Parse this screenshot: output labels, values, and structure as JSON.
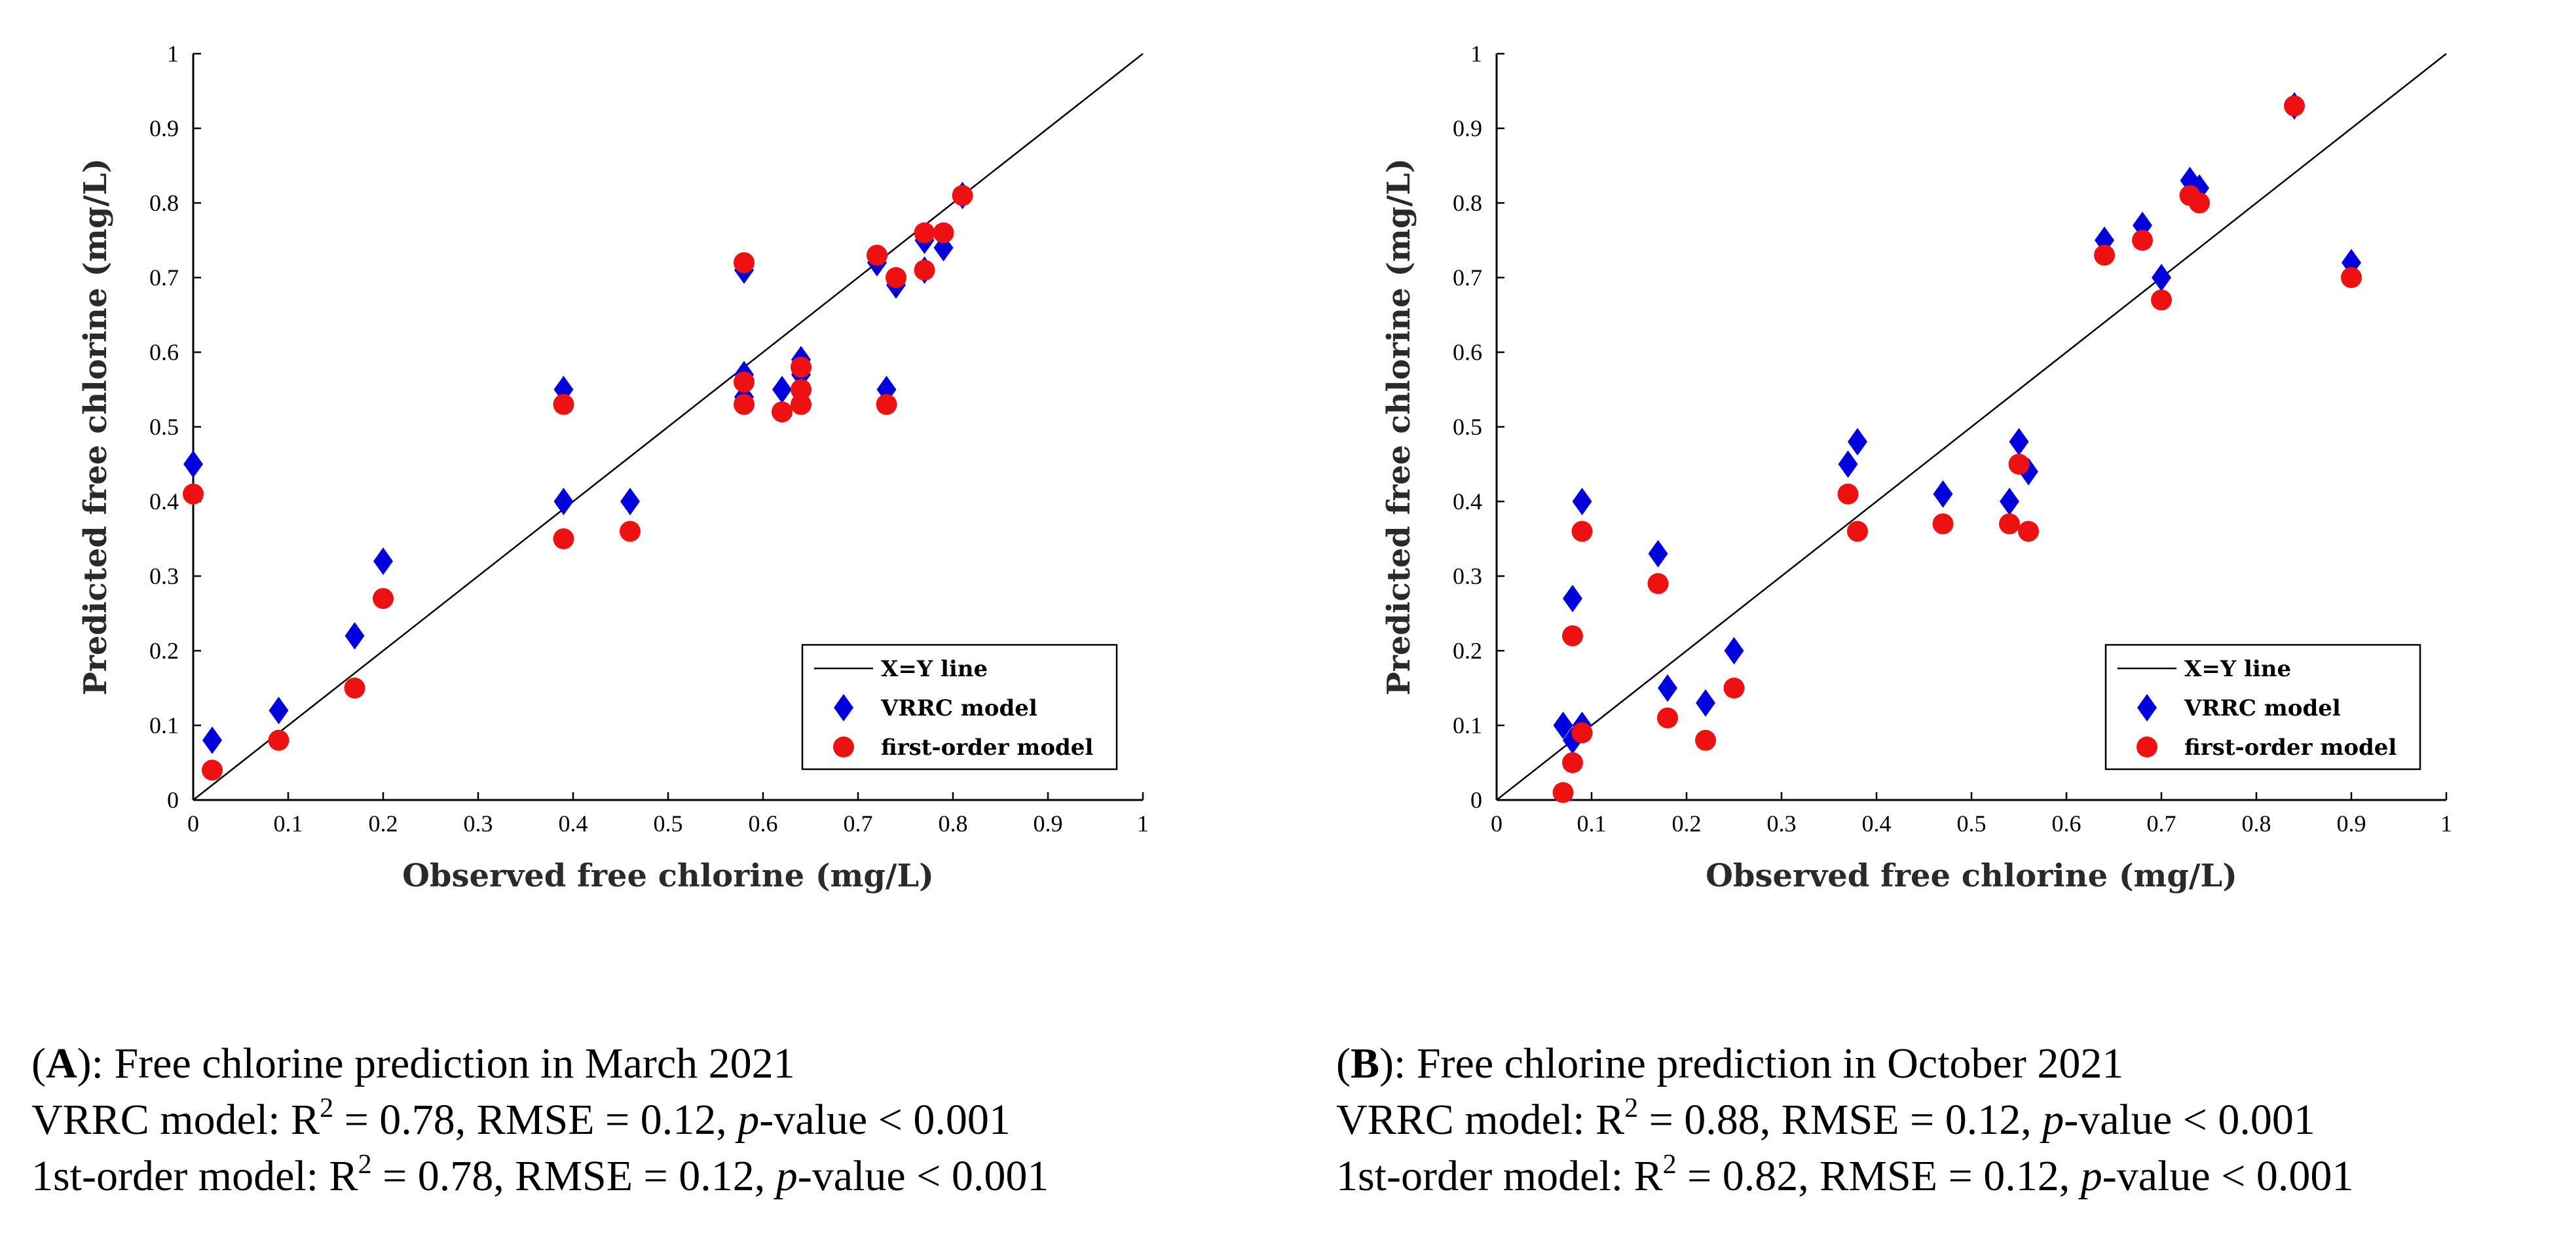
{
  "chart_data": [
    {
      "type": "scatter",
      "id": "A",
      "xlabel": "Observed free chlorine (mg/L)",
      "ylabel": "Predicted free chlorine (mg/L)",
      "xlim": [
        0,
        1
      ],
      "ylim": [
        0,
        1
      ],
      "ticks": [
        "0",
        "0.1",
        "0.2",
        "0.3",
        "0.4",
        "0.5",
        "0.6",
        "0.7",
        "0.8",
        "0.9",
        "1"
      ],
      "tick_values": [
        0,
        0.1,
        0.2,
        0.3,
        0.4,
        0.5,
        0.6,
        0.7,
        0.8,
        0.9,
        1
      ],
      "legend": {
        "placement": "bottom-right",
        "entries": [
          "X=Y line",
          "VRRC model",
          "first-order model"
        ]
      },
      "series": [
        {
          "name": "VRRC model",
          "marker": "diamond",
          "color": "#0000dd",
          "x": [
            0.0,
            0.02,
            0.09,
            0.17,
            0.2,
            0.39,
            0.39,
            0.46,
            0.58,
            0.58,
            0.58,
            0.62,
            0.64,
            0.64,
            0.64,
            0.72,
            0.73,
            0.74,
            0.77,
            0.77,
            0.79,
            0.81
          ],
          "y": [
            0.45,
            0.08,
            0.12,
            0.22,
            0.32,
            0.55,
            0.4,
            0.4,
            0.71,
            0.57,
            0.54,
            0.55,
            0.59,
            0.57,
            0.55,
            0.72,
            0.55,
            0.69,
            0.75,
            0.71,
            0.74,
            0.81
          ]
        },
        {
          "name": "first-order model",
          "marker": "circle",
          "color": "#ee1111",
          "x": [
            0.0,
            0.02,
            0.09,
            0.17,
            0.2,
            0.39,
            0.39,
            0.46,
            0.58,
            0.58,
            0.58,
            0.62,
            0.64,
            0.64,
            0.64,
            0.72,
            0.73,
            0.74,
            0.77,
            0.77,
            0.79,
            0.81
          ],
          "y": [
            0.41,
            0.04,
            0.08,
            0.15,
            0.27,
            0.53,
            0.35,
            0.36,
            0.72,
            0.56,
            0.53,
            0.52,
            0.58,
            0.55,
            0.53,
            0.73,
            0.53,
            0.7,
            0.76,
            0.71,
            0.76,
            0.81
          ]
        }
      ]
    },
    {
      "type": "scatter",
      "id": "B",
      "xlabel": "Observed free chlorine (mg/L)",
      "ylabel": "Predicted free chlorine (mg/L)",
      "xlim": [
        0,
        1
      ],
      "ylim": [
        0,
        1
      ],
      "ticks": [
        "0",
        "0.1",
        "0.2",
        "0.3",
        "0.4",
        "0.5",
        "0.6",
        "0.7",
        "0.8",
        "0.9",
        "1"
      ],
      "tick_values": [
        0,
        0.1,
        0.2,
        0.3,
        0.4,
        0.5,
        0.6,
        0.7,
        0.8,
        0.9,
        1
      ],
      "legend": {
        "placement": "bottom-right",
        "entries": [
          "X=Y line",
          "VRRC model",
          "first-order model"
        ]
      },
      "series": [
        {
          "name": "VRRC model",
          "marker": "diamond",
          "color": "#0000dd",
          "x": [
            0.07,
            0.08,
            0.08,
            0.09,
            0.09,
            0.17,
            0.18,
            0.22,
            0.25,
            0.37,
            0.38,
            0.47,
            0.54,
            0.55,
            0.56,
            0.64,
            0.68,
            0.7,
            0.73,
            0.74,
            0.84,
            0.9
          ],
          "y": [
            0.1,
            0.27,
            0.08,
            0.4,
            0.1,
            0.33,
            0.15,
            0.13,
            0.2,
            0.45,
            0.48,
            0.41,
            0.4,
            0.48,
            0.44,
            0.75,
            0.77,
            0.7,
            0.83,
            0.82,
            0.93,
            0.72
          ]
        },
        {
          "name": "first-order model",
          "marker": "circle",
          "color": "#ee1111",
          "x": [
            0.07,
            0.08,
            0.08,
            0.09,
            0.09,
            0.17,
            0.18,
            0.22,
            0.25,
            0.37,
            0.38,
            0.47,
            0.54,
            0.55,
            0.56,
            0.64,
            0.68,
            0.7,
            0.73,
            0.74,
            0.84,
            0.9
          ],
          "y": [
            0.01,
            0.22,
            0.05,
            0.36,
            0.09,
            0.29,
            0.11,
            0.08,
            0.15,
            0.41,
            0.36,
            0.37,
            0.37,
            0.45,
            0.36,
            0.73,
            0.75,
            0.67,
            0.81,
            0.8,
            0.93,
            0.7
          ]
        }
      ]
    }
  ],
  "captions": {
    "A": {
      "label": "A",
      "title": ": Free chlorine prediction in March 2021",
      "vrrc_prefix": "VRRC model: R",
      "vrrc_r2": " = 0.78, RMSE = 0.12, ",
      "first_prefix": "1st-order model: R",
      "first_r2": " = 0.78, RMSE = 0.12, "
    },
    "B": {
      "label": "B",
      "title": ": Free chlorine prediction in October 2021",
      "vrrc_prefix": "VRRC model: R",
      "vrrc_r2": " = 0.88, RMSE = 0.12, ",
      "first_prefix": "1st-order model: R",
      "first_r2": " = 0.82, RMSE = 0.12, "
    },
    "sq": "2",
    "open_paren": "(",
    "close_paren": ")",
    "p_letter": "p",
    "p_tail": "-value < 0.001"
  }
}
